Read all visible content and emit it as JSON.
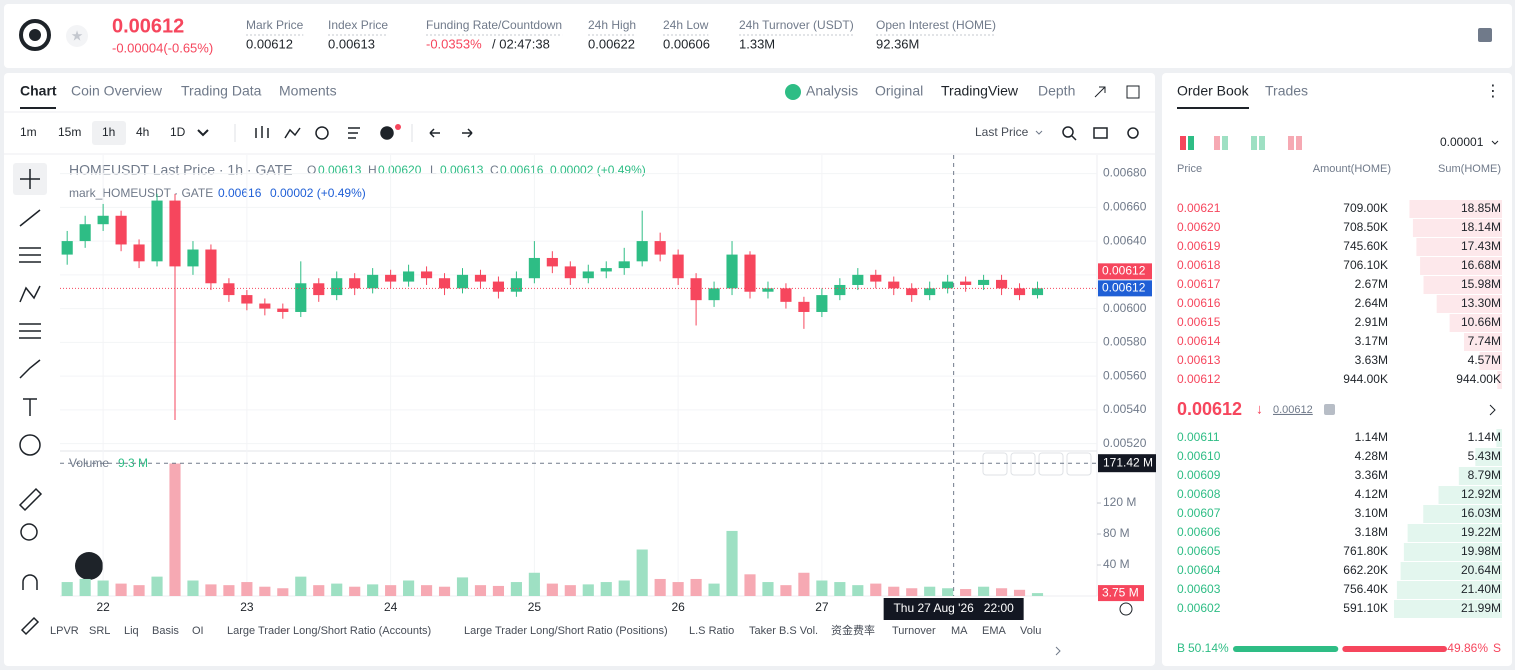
{
  "header": {
    "price": "0.00612",
    "change": "-0.00004(-0.65%)",
    "stats": [
      {
        "label": "Mark Price",
        "value": "0.00612"
      },
      {
        "label": "Index Price",
        "value": "0.00613"
      },
      {
        "label": "Funding Rate/Countdown",
        "value": "-0.0353%",
        "extra": "/ 02:47:38"
      },
      {
        "label": "24h High",
        "value": "0.00622"
      },
      {
        "label": "24h Low",
        "value": "0.00606"
      },
      {
        "label": "24h Turnover (USDT)",
        "value": "1.33M"
      },
      {
        "label": "Open Interest (HOME)",
        "value": "92.36M"
      }
    ]
  },
  "tabs": [
    "Chart",
    "Coin Overview",
    "Trading Data",
    "Moments"
  ],
  "views": [
    "Analysis",
    "Original",
    "TradingView",
    "Depth"
  ],
  "intervals": [
    "1m",
    "15m",
    "1h",
    "4h",
    "1D"
  ],
  "price_type": "Last Price",
  "legend": {
    "title": "HOMEUSDT Last Price · 1h · GATE",
    "ohlc": [
      [
        "O",
        "0.00613"
      ],
      [
        "H",
        "0.00620"
      ],
      [
        "L",
        "0.00613"
      ],
      [
        "C",
        "0.00616"
      ]
    ],
    "change": "0.00002 (+0.49%)",
    "mark_title": "mark_HOMEUSDT · GATE",
    "mark_value": "0.00616",
    "mark_change": "0.00002 (+0.49%)"
  },
  "indicators": [
    "LPVR",
    "SRL",
    "Liq",
    "Basis",
    "OI",
    "Large Trader Long/Short Ratio (Accounts)",
    "Large Trader Long/Short Ratio (Positions)",
    "L.S Ratio",
    "Taker B.S Vol.",
    "资金费率",
    "Turnover",
    "MA",
    "EMA",
    "Volu"
  ],
  "chart_data": {
    "type": "candlestick",
    "x": [
      21.75,
      21.875,
      22,
      22.125,
      22.25,
      22.375,
      22.5,
      22.625,
      22.75,
      22.875,
      23,
      23.125,
      23.25,
      23.375,
      23.5,
      23.625,
      23.75,
      23.875,
      24,
      24.125,
      24.25,
      24.375,
      24.5,
      24.625,
      24.75,
      24.875,
      25,
      25.125,
      25.25,
      25.375,
      25.5,
      25.625,
      25.75,
      25.875,
      26,
      26.125,
      26.25,
      26.375,
      26.5,
      26.625,
      26.75,
      26.875,
      27,
      27.125,
      27.25,
      27.375,
      27.5,
      27.625,
      27.75,
      27.875,
      28,
      28.125,
      28.25,
      28.375,
      28.5
    ],
    "open": [
      0.00632,
      0.0064,
      0.0065,
      0.00655,
      0.00638,
      0.00628,
      0.00664,
      0.00625,
      0.00635,
      0.00615,
      0.00608,
      0.00603,
      0.006,
      0.00598,
      0.00615,
      0.00608,
      0.00618,
      0.00612,
      0.0062,
      0.00616,
      0.00622,
      0.00618,
      0.00612,
      0.0062,
      0.00616,
      0.0061,
      0.00618,
      0.0063,
      0.00625,
      0.00618,
      0.00622,
      0.00624,
      0.00628,
      0.0064,
      0.00632,
      0.00618,
      0.00605,
      0.00612,
      0.00632,
      0.0061,
      0.00612,
      0.00604,
      0.00598,
      0.00608,
      0.00614,
      0.0062,
      0.00616,
      0.00612,
      0.00608,
      0.00612,
      0.00616,
      0.00614,
      0.00617,
      0.00612,
      0.00608
    ],
    "high": [
      0.00646,
      0.00655,
      0.00662,
      0.00658,
      0.00641,
      0.00668,
      0.00668,
      0.0064,
      0.00638,
      0.00618,
      0.00611,
      0.00606,
      0.00603,
      0.00628,
      0.00618,
      0.00622,
      0.00621,
      0.00624,
      0.00623,
      0.00626,
      0.00625,
      0.00621,
      0.00624,
      0.00623,
      0.00619,
      0.00622,
      0.0064,
      0.00634,
      0.00628,
      0.00626,
      0.00628,
      0.00636,
      0.00658,
      0.00645,
      0.00635,
      0.00621,
      0.00616,
      0.0064,
      0.00634,
      0.00616,
      0.00615,
      0.00607,
      0.00612,
      0.00618,
      0.00624,
      0.00623,
      0.00619,
      0.00615,
      0.00616,
      0.0062,
      0.00619,
      0.0062,
      0.0062,
      0.00615,
      0.00616
    ],
    "low": [
      0.00626,
      0.00636,
      0.00646,
      0.00634,
      0.00624,
      0.00625,
      0.00534,
      0.0062,
      0.00611,
      0.00604,
      0.00599,
      0.00596,
      0.00594,
      0.00595,
      0.00604,
      0.00605,
      0.00608,
      0.00609,
      0.00612,
      0.00613,
      0.00614,
      0.00608,
      0.00609,
      0.00612,
      0.00606,
      0.00607,
      0.00615,
      0.00621,
      0.00614,
      0.00615,
      0.00618,
      0.0062,
      0.00625,
      0.00628,
      0.00614,
      0.0059,
      0.00601,
      0.00608,
      0.00606,
      0.00606,
      0.006,
      0.00588,
      0.00595,
      0.00605,
      0.00611,
      0.00612,
      0.00608,
      0.00604,
      0.00605,
      0.00609,
      0.0061,
      0.00611,
      0.00608,
      0.00605,
      0.00606
    ],
    "close": [
      0.0064,
      0.0065,
      0.00655,
      0.00638,
      0.00628,
      0.00664,
      0.00625,
      0.00635,
      0.00615,
      0.00608,
      0.00603,
      0.006,
      0.00598,
      0.00615,
      0.00608,
      0.00618,
      0.00612,
      0.0062,
      0.00616,
      0.00622,
      0.00618,
      0.00612,
      0.0062,
      0.00616,
      0.0061,
      0.00618,
      0.0063,
      0.00625,
      0.00618,
      0.00622,
      0.00624,
      0.00628,
      0.0064,
      0.00632,
      0.00618,
      0.00605,
      0.00612,
      0.00632,
      0.0061,
      0.00612,
      0.00604,
      0.00598,
      0.00608,
      0.00614,
      0.0062,
      0.00616,
      0.00612,
      0.00608,
      0.00612,
      0.00616,
      0.00614,
      0.00617,
      0.00612,
      0.00608,
      0.00612
    ],
    "up_color": "#2ebd85",
    "down_color": "#f6465d",
    "xlim": [
      21.7,
      28.9
    ],
    "xticks": [
      22,
      23,
      24,
      25,
      26,
      27
    ],
    "ylim": [
      0.00518,
      0.00691
    ],
    "yticks": [
      {
        "value": 0.0068,
        "label": "0.00680"
      },
      {
        "value": 0.0066,
        "label": "0.00660"
      },
      {
        "value": 0.0064,
        "label": "0.00640"
      },
      0.0062,
      {
        "value": 0.006,
        "label": "0.00600"
      },
      {
        "value": 0.0058,
        "label": "0.00580"
      },
      {
        "value": 0.0056,
        "label": "0.00560"
      },
      {
        "value": 0.0054,
        "label": "0.00540"
      },
      {
        "value": 0.0052,
        "label": "0.00520"
      }
    ],
    "grid": true,
    "last_price": {
      "value": 0.00612,
      "label": "0.00612",
      "color": "#f6465d"
    },
    "mark_price": {
      "value": 0.00612,
      "label": "0.00612",
      "color": "#1f5fd6"
    },
    "volume": {
      "name": "Volume",
      "current": "9.3 M",
      "values": [
        18,
        22,
        20,
        16,
        14,
        25,
        171,
        20,
        15,
        14,
        18,
        12,
        10,
        25,
        14,
        16,
        12,
        15,
        14,
        20,
        14,
        12,
        24,
        14,
        13,
        18,
        30,
        16,
        14,
        15,
        18,
        20,
        60,
        22,
        18,
        22,
        16,
        84,
        28,
        18,
        14,
        30,
        20,
        18,
        14,
        16,
        12,
        10,
        12,
        10,
        9,
        12,
        10,
        8,
        3.75
      ],
      "last_label": "3.75 M",
      "up_color": "#9ee0c3",
      "down_color": "#f6a9b3",
      "ylim": [
        0,
        182
      ],
      "yticks": [
        {
          "value": 40,
          "label": "40 M"
        },
        {
          "value": 80,
          "label": "80 M"
        },
        {
          "value": 120,
          "label": "120 M"
        }
      ]
    },
    "crosshair": {
      "x": {
        "value": 27.9167,
        "label": "Thu 27 Aug '26   22:00"
      },
      "y": {
        "value": 171.42,
        "label": "171.42 M"
      }
    }
  },
  "order_book": {
    "tabs": [
      "Order Book",
      "Trades"
    ],
    "precision": "0.00001",
    "columns": [
      "Price",
      "Amount(HOME)",
      "Sum(HOME)"
    ],
    "asks": {
      "prices": [
        "0.00621",
        "0.00620",
        "0.00619",
        "0.00618",
        "0.00617",
        "0.00616",
        "0.00615",
        "0.00614",
        "0.00613",
        "0.00612"
      ],
      "amounts": [
        "709.00K",
        "708.50K",
        "745.60K",
        "706.10K",
        "2.67M",
        "2.64M",
        "2.91M",
        "3.17M",
        "3.63M",
        "944.00K"
      ],
      "sums": [
        18.85,
        18.14,
        17.43,
        16.68,
        15.98,
        13.3,
        10.66,
        7.74,
        4.57,
        0.944
      ],
      "sum_labels": [
        "18.85M",
        "18.14M",
        "17.43M",
        "16.68M",
        "15.98M",
        "13.30M",
        "10.66M",
        "7.74M",
        "4.57M",
        "944.00K"
      ]
    },
    "mid": {
      "price": "0.00612",
      "mark": "0.00612"
    },
    "bids": {
      "prices": [
        "0.00611",
        "0.00610",
        "0.00609",
        "0.00608",
        "0.00607",
        "0.00606",
        "0.00605",
        "0.00604",
        "0.00603",
        "0.00602"
      ],
      "amounts": [
        "1.14M",
        "4.28M",
        "3.36M",
        "4.12M",
        "3.10M",
        "3.18M",
        "761.80K",
        "662.20K",
        "756.40K",
        "591.10K"
      ],
      "sums": [
        1.14,
        5.43,
        8.79,
        12.92,
        16.03,
        19.22,
        19.98,
        20.64,
        21.4,
        21.99
      ],
      "sum_labels": [
        "1.14M",
        "5.43M",
        "8.79M",
        "12.92M",
        "16.03M",
        "19.22M",
        "19.98M",
        "20.64M",
        "21.40M",
        "21.99M"
      ]
    },
    "ratio": {
      "buy_label": "B",
      "buy": 50.14,
      "buy_text": "50.14%",
      "sell": 49.86,
      "sell_text": "49.86%",
      "sell_label": "S"
    }
  }
}
